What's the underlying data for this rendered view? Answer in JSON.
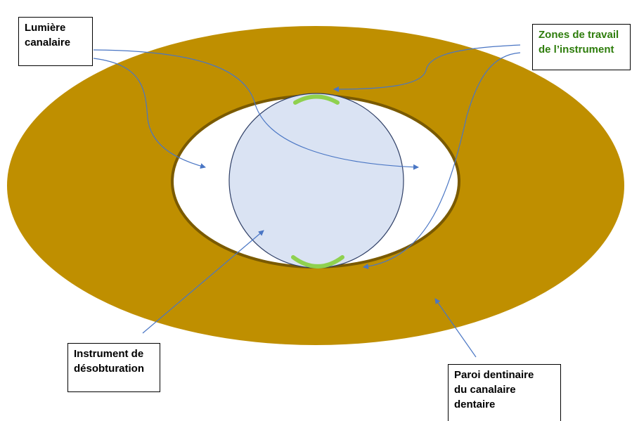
{
  "colors": {
    "dentin": "#bf8f00",
    "dentin_edge": "#7a5a00",
    "canal": "#ffffff",
    "instrument_fill": "#dae3f3",
    "instrument_edge": "#2f3f66",
    "working_zone": "#8fd14f",
    "arrow": "#4a76c4",
    "zones_text": "#2e7d0c"
  },
  "labels": {
    "lumiere": [
      "Lumière",
      "canalaire"
    ],
    "zones": [
      "Zones de travail",
      "de l’instrument"
    ],
    "instrument": [
      "Instrument de",
      "désobturation"
    ],
    "paroi": [
      "Paroi dentinaire",
      "du canalaire",
      "dentaire"
    ]
  }
}
